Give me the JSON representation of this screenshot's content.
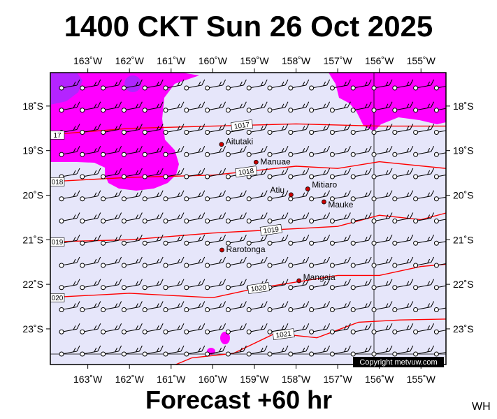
{
  "title": "1400 CKT Sun 26 Oct 2025",
  "footer": "Forecast +60 hr",
  "corner_label": "WH",
  "copyright": "Copyright metvuw.com",
  "colors": {
    "ocean": "#e6e6fa",
    "precip_magenta": "#ff00ff",
    "precip_purple": "#8a2be2",
    "isobar": "#ff0000",
    "island": "#cc0000"
  },
  "map": {
    "lon_ticks": [
      "163˚W",
      "162˚W",
      "161˚W",
      "160˚W",
      "159˚W",
      "158˚W",
      "157˚W",
      "156˚W",
      "155˚W"
    ],
    "lat_ticks": [
      "18˚S",
      "19˚S",
      "20˚S",
      "21˚S",
      "22˚S",
      "23˚S"
    ],
    "lon_values": [
      -163,
      -162,
      -161,
      -160,
      -159,
      -158,
      -157,
      -156,
      -155
    ],
    "lat_values": [
      -18,
      -19,
      -20,
      -21,
      -22,
      -23
    ],
    "lon_range": [
      -163.9,
      -154.4
    ],
    "lat_range": [
      -17.25,
      -23.8
    ],
    "isobars": [
      {
        "label": "1017",
        "label_left": "17",
        "points": [
          [
            -164,
            -18.65
          ],
          [
            -162,
            -18.5
          ],
          [
            -160,
            -18.45
          ],
          [
            -158,
            -18.4
          ],
          [
            -156,
            -18.45
          ],
          [
            -154.4,
            -18.45
          ]
        ]
      },
      {
        "label": "1018",
        "label_left": "018",
        "points": [
          [
            -164,
            -19.7
          ],
          [
            -162,
            -19.6
          ],
          [
            -160,
            -19.55
          ],
          [
            -159,
            -19.45
          ],
          [
            -158,
            -19.35
          ],
          [
            -157,
            -19.4
          ],
          [
            -156,
            -19.25
          ],
          [
            -154.4,
            -19.4
          ]
        ]
      },
      {
        "label": "1019",
        "label_left": "019",
        "points": [
          [
            -164,
            -21.05
          ],
          [
            -162,
            -21.0
          ],
          [
            -160,
            -20.85
          ],
          [
            -159,
            -20.8
          ],
          [
            -158,
            -20.75
          ],
          [
            -157,
            -20.7
          ],
          [
            -156,
            -20.45
          ],
          [
            -155,
            -20.55
          ],
          [
            -154.4,
            -20.4
          ]
        ]
      },
      {
        "label": "1020",
        "label_left": "020",
        "points": [
          [
            -164,
            -22.3
          ],
          [
            -162,
            -22.2
          ],
          [
            -160,
            -22.3
          ],
          [
            -159,
            -22.1
          ],
          [
            -158,
            -21.95
          ],
          [
            -157,
            -21.8
          ],
          [
            -156,
            -21.8
          ],
          [
            -155,
            -21.6
          ],
          [
            -154.4,
            -21.55
          ]
        ]
      },
      {
        "label": "1021",
        "label_left": "",
        "points": [
          [
            -162.4,
            -24
          ],
          [
            -161.9,
            -23.85
          ],
          [
            -161.4,
            -24
          ],
          [
            -160.5,
            -23.65
          ],
          [
            -159.5,
            -23.55
          ],
          [
            -158.5,
            -23.1
          ],
          [
            -157.5,
            -23.2
          ],
          [
            -156.5,
            -22.85
          ],
          [
            -155.5,
            -22.8
          ],
          [
            -154.4,
            -22.78
          ]
        ]
      }
    ],
    "places": [
      {
        "name": "Aitutaki",
        "lon": -159.79,
        "lat": -18.86
      },
      {
        "name": "Manuae",
        "lon": -158.96,
        "lat": -19.26
      },
      {
        "name": "Mitiaro",
        "lon": -157.72,
        "lat": -19.86
      },
      {
        "name": "Atiu",
        "lon": -158.12,
        "lat": -19.99
      },
      {
        "name": "Mauke",
        "lon": -157.33,
        "lat": -20.15
      },
      {
        "name": "Rarotonga",
        "lon": -159.78,
        "lat": -21.23
      },
      {
        "name": "Mangaia",
        "lon": -157.93,
        "lat": -21.92
      }
    ]
  }
}
